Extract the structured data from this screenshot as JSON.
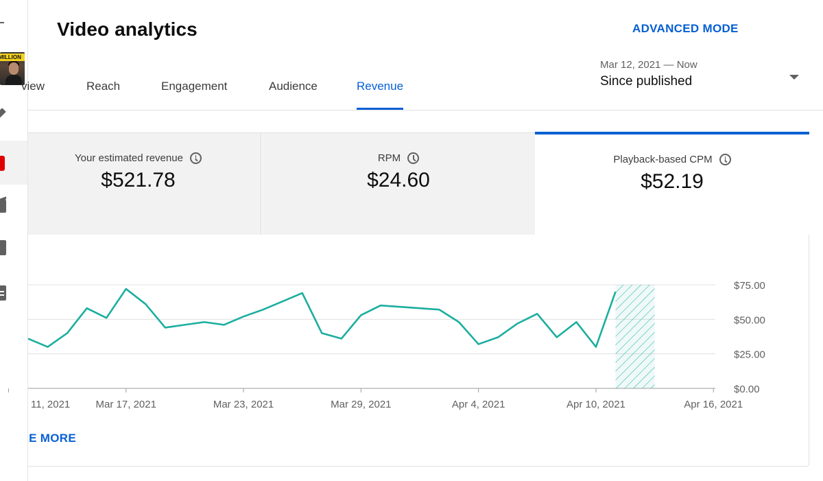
{
  "header": {
    "title": "Video analytics",
    "advanced_mode_label": "ADVANCED MODE"
  },
  "thumbnail": {
    "overlay_text": "MILLION"
  },
  "tabs": [
    {
      "label": "Overview",
      "visible_text": "iew"
    },
    {
      "label": "Reach"
    },
    {
      "label": "Engagement"
    },
    {
      "label": "Audience"
    },
    {
      "label": "Revenue",
      "active": true
    }
  ],
  "date_range": {
    "sub": "Mar 12, 2021 — Now",
    "main": "Since published"
  },
  "metrics": [
    {
      "label": "Your estimated revenue",
      "value": "$521.78"
    },
    {
      "label": "RPM",
      "value": "$24.60"
    },
    {
      "label": "Playback-based CPM",
      "value": "$52.19",
      "selected": true
    }
  ],
  "chart_data": {
    "type": "line",
    "series": [
      {
        "values": [
          36,
          30,
          40,
          58,
          51,
          72,
          61,
          44,
          46,
          48,
          46,
          52,
          57,
          63,
          69,
          40,
          36,
          53,
          60,
          59,
          58,
          57,
          48,
          32,
          37,
          47,
          54,
          37,
          48,
          30,
          70
        ]
      }
    ],
    "x": [
      "Mar 12",
      "Mar 13",
      "Mar 14",
      "Mar 15",
      "Mar 16",
      "Mar 17",
      "Mar 18",
      "Mar 19",
      "Mar 20",
      "Mar 21",
      "Mar 22",
      "Mar 23",
      "Mar 24",
      "Mar 25",
      "Mar 26",
      "Mar 27",
      "Mar 28",
      "Mar 29",
      "Mar 30",
      "Mar 31",
      "Apr 1",
      "Apr 2",
      "Apr 3",
      "Apr 4",
      "Apr 5",
      "Apr 6",
      "Apr 7",
      "Apr 8",
      "Apr 9",
      "Apr 10",
      "Apr 11"
    ],
    "x_tick_labels": [
      "11, 2021",
      "Mar 17, 2021",
      "Mar 23, 2021",
      "Mar 29, 2021",
      "Apr 4, 2021",
      "Apr 10, 2021",
      "Apr 16, 2021"
    ],
    "y_tick_labels": [
      "$75.00",
      "$50.00",
      "$25.00",
      "$0.00"
    ],
    "ylim": [
      0,
      75
    ],
    "incomplete_data_range": [
      "Apr 11",
      "Apr 13"
    ],
    "line_color": "#1aae9f",
    "grid": true
  },
  "footer": {
    "see_more_label": "SEE MORE",
    "see_more_visible": "E MORE"
  },
  "colors": {
    "accent": "#065fd4",
    "line": "#1aae9f"
  }
}
